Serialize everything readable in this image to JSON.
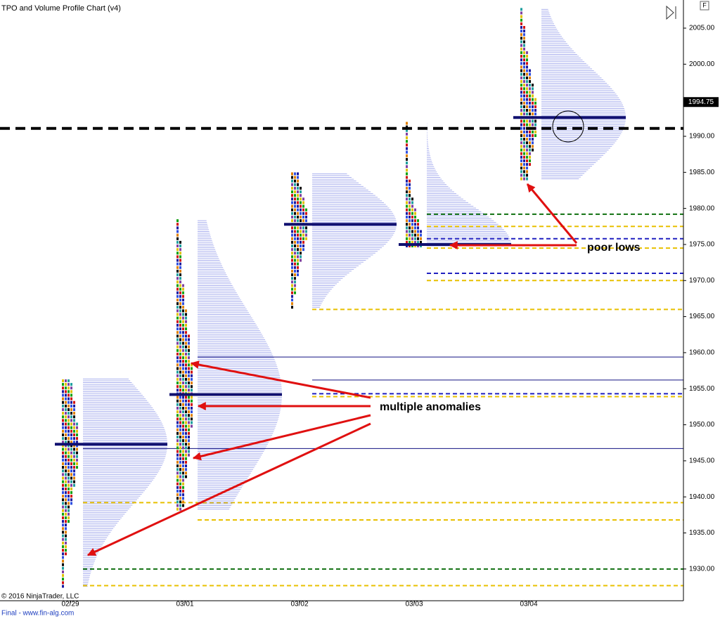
{
  "chart_data": {
    "type": "tpo",
    "title": "TPO and Volume Profile Chart (v4)",
    "ylim": [
      1925.6,
      2008.9
    ],
    "yticks": [
      {
        "value": 2005,
        "label": "2005.00"
      },
      {
        "value": 2000,
        "label": "2000.00"
      },
      {
        "value": 1995,
        "label": "1995.00"
      },
      {
        "value": 1990,
        "label": "1990.00"
      },
      {
        "value": 1985,
        "label": "1985.00"
      },
      {
        "value": 1980,
        "label": "1980.00"
      },
      {
        "value": 1975,
        "label": "1975.00"
      },
      {
        "value": 1970,
        "label": "1970.00"
      },
      {
        "value": 1965,
        "label": "1965.00"
      },
      {
        "value": 1960,
        "label": "1960.00"
      },
      {
        "value": 1955,
        "label": "1955.00"
      },
      {
        "value": 1950,
        "label": "1950.00"
      },
      {
        "value": 1945,
        "label": "1945.00"
      },
      {
        "value": 1940,
        "label": "1940.00"
      },
      {
        "value": 1935,
        "label": "1935.00"
      },
      {
        "value": 1930,
        "label": "1930.00"
      }
    ],
    "last_price": 1994.75,
    "key_level": {
      "value": 1991.1,
      "color": "#000000"
    },
    "tpo_colors": [
      "#1a1aa0",
      "#d01010",
      "#10a010",
      "#e0c000",
      "#8040a0",
      "#20a0a0",
      "#000000",
      "#e08000",
      "#3050e0"
    ],
    "profile_color": "#aab0ee",
    "poc_color": "#101070",
    "categories": [
      "02/29",
      "03/01",
      "03/02",
      "03/03",
      "03/04"
    ],
    "sessions": [
      {
        "high": 1956.5,
        "low": 1927.6,
        "poc": 1947.3,
        "levels": [
          {
            "value": 1939.2,
            "color": "#e8c000",
            "dashed": true
          },
          {
            "value": 1946.7,
            "color": "#101080",
            "dashed": false
          },
          {
            "value": 1930.0,
            "color": "#107010",
            "dashed": true
          },
          {
            "value": 1927.7,
            "color": "#e8c000",
            "dashed": true
          }
        ]
      },
      {
        "high": 1978.5,
        "low": 1938.3,
        "poc": 1954.2,
        "levels": [
          {
            "value": 1959.4,
            "color": "#101080",
            "dashed": false
          },
          {
            "value": 1936.8,
            "color": "#e8c000",
            "dashed": true
          }
        ]
      },
      {
        "high": 1984.9,
        "low": 1966.3,
        "poc": 1977.8,
        "levels": [
          {
            "value": 1956.2,
            "color": "#101080",
            "dashed": false
          },
          {
            "value": 1966.0,
            "color": "#e8c000",
            "dashed": true
          },
          {
            "value": 1954.3,
            "color": "#2020c0",
            "dashed": true
          },
          {
            "value": 1953.9,
            "color": "#e8c000",
            "dashed": true
          }
        ]
      },
      {
        "high": 1992.0,
        "low": 1974.8,
        "poc": 1975.0,
        "levels": [
          {
            "value": 1979.2,
            "color": "#107010",
            "dashed": true
          },
          {
            "value": 1977.5,
            "color": "#e8c000",
            "dashed": true
          },
          {
            "value": 1975.8,
            "color": "#2020c0",
            "dashed": true
          },
          {
            "value": 1974.5,
            "color": "#e8c000",
            "dashed": true
          },
          {
            "value": 1971.0,
            "color": "#2020c0",
            "dashed": true
          },
          {
            "value": 1970.0,
            "color": "#e8c000",
            "dashed": true
          }
        ]
      },
      {
        "high": 2007.7,
        "low": 1984.1,
        "poc": 1992.6,
        "levels": []
      }
    ],
    "annotations": [
      "poor lows",
      "multiple anomalies"
    ],
    "copyright": "© 2016 NinjaTrader, LLC",
    "footer": "Final - www.fin-alg.com",
    "button": "F"
  }
}
